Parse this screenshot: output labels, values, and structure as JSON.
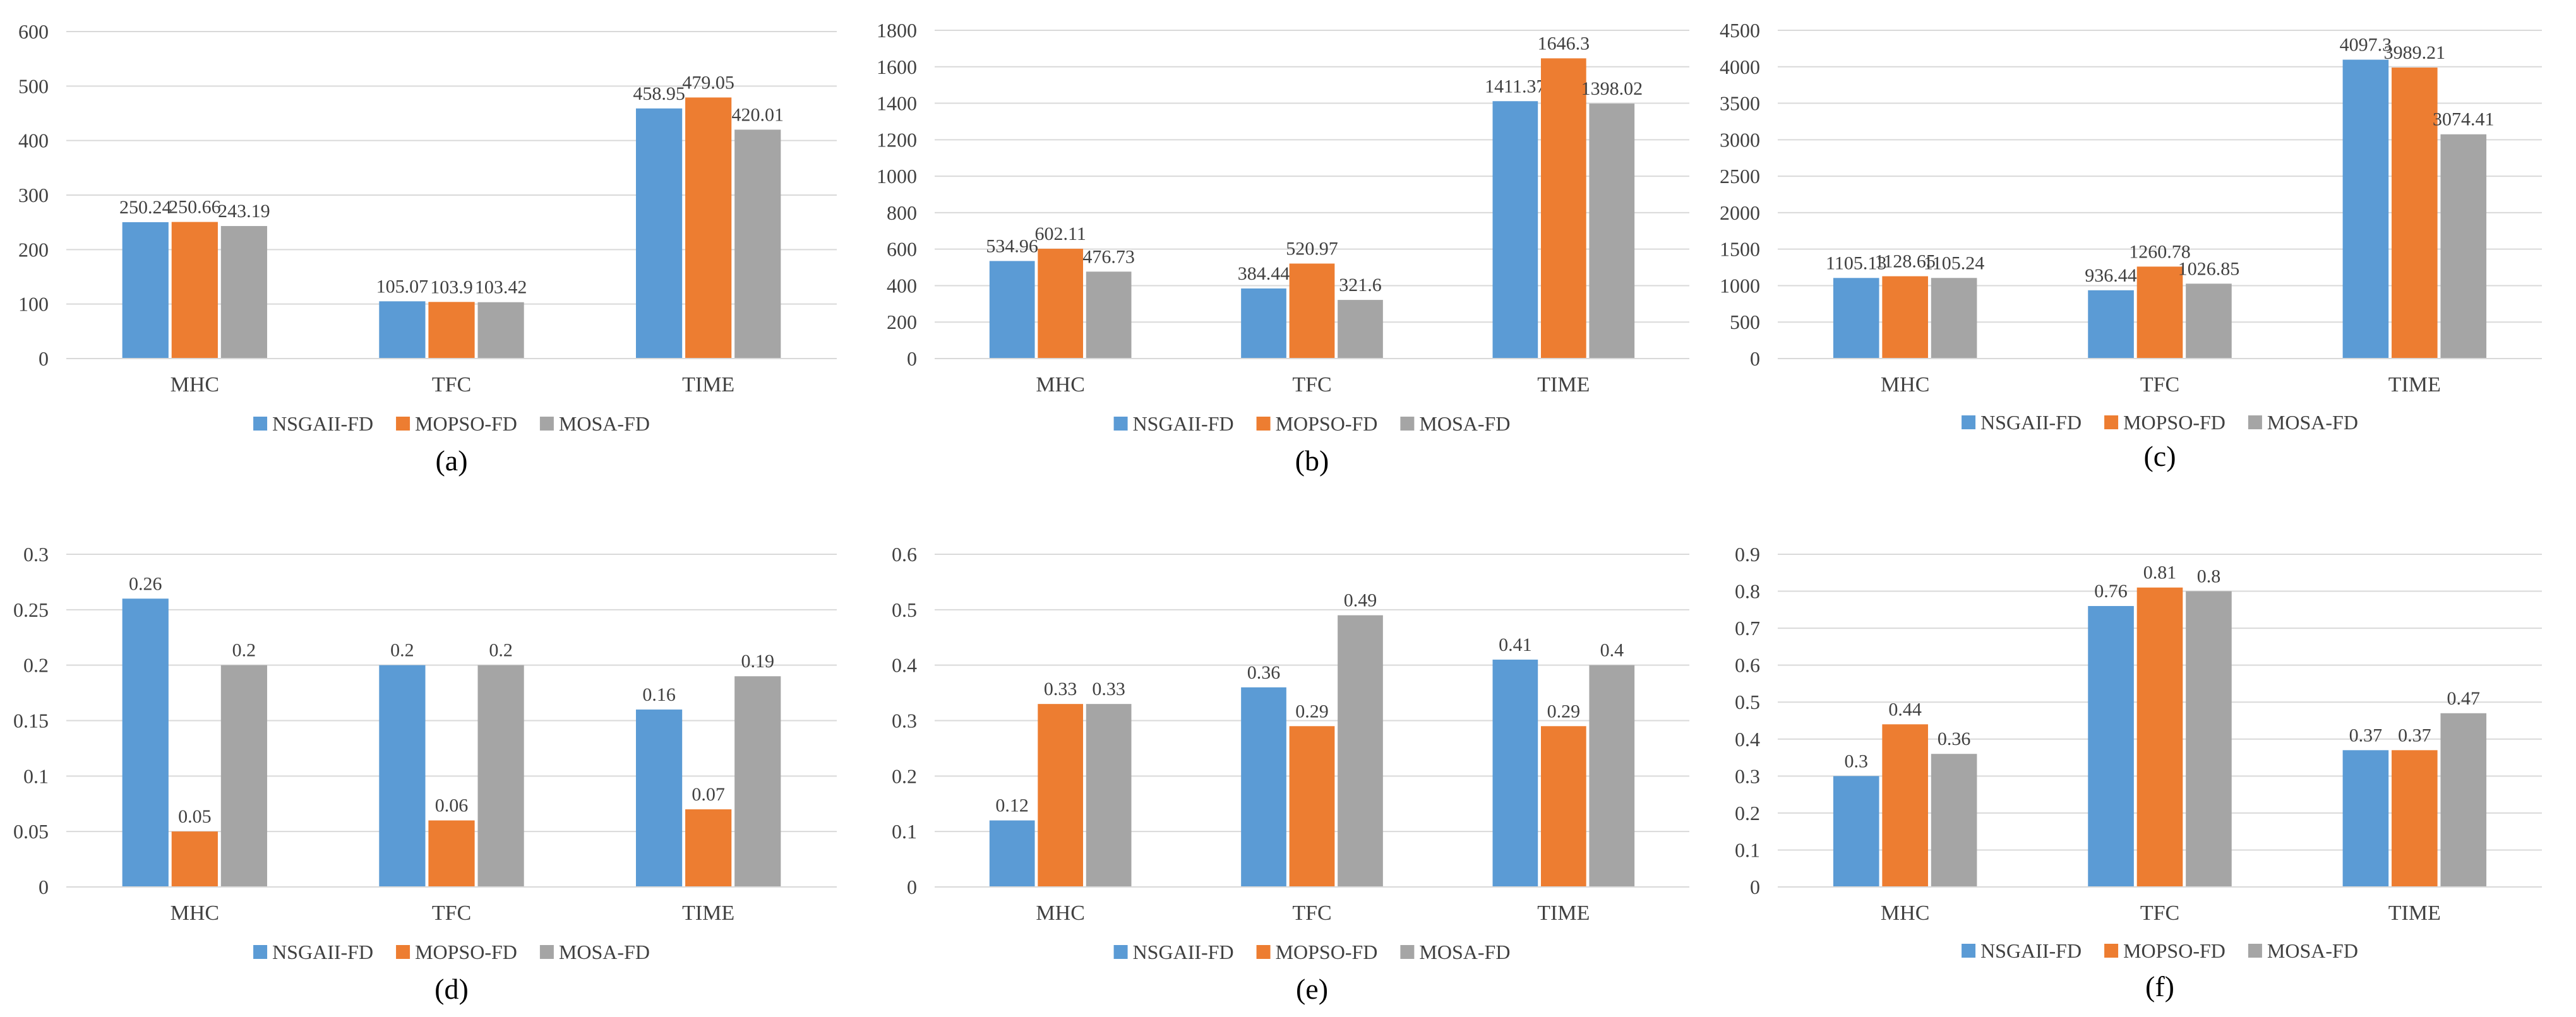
{
  "colors": {
    "NSGAII-FD": "#5b9bd5",
    "MOPSO-FD": "#ed7d31",
    "MOSA-FD": "#a5a5a5",
    "grid": "#d9d9d9",
    "axis_text": "#404040"
  },
  "chart_data": [
    {
      "type": "bar",
      "panel": "(a)",
      "categories": [
        "MHC",
        "TFC",
        "TIME"
      ],
      "series": [
        {
          "name": "NSGAII-FD",
          "values": [
            250.24,
            105.07,
            458.95
          ],
          "labels": [
            "250.24",
            "105.07",
            "458.95"
          ]
        },
        {
          "name": "MOPSO-FD",
          "values": [
            250.66,
            103.9,
            479.05
          ],
          "labels": [
            "250.66",
            "103.9",
            "479.05"
          ]
        },
        {
          "name": "MOSA-FD",
          "values": [
            243.19,
            103.42,
            420.01
          ],
          "labels": [
            "243.19",
            "103.42",
            "420.01"
          ]
        }
      ],
      "ylim": [
        0,
        600
      ],
      "yticks": [
        "0",
        "100",
        "200",
        "300",
        "400",
        "500",
        "600"
      ],
      "legend": "bottom",
      "grid": true
    },
    {
      "type": "bar",
      "panel": "(b)",
      "categories": [
        "MHC",
        "TFC",
        "TIME"
      ],
      "series": [
        {
          "name": "NSGAII-FD",
          "values": [
            534.96,
            384.44,
            1411.37
          ],
          "labels": [
            "534.96",
            "384.44",
            "1411.37"
          ]
        },
        {
          "name": "MOPSO-FD",
          "values": [
            602.11,
            520.97,
            1646.3
          ],
          "labels": [
            "602.11",
            "520.97",
            "1646.3"
          ]
        },
        {
          "name": "MOSA-FD",
          "values": [
            476.73,
            321.6,
            1398.02
          ],
          "labels": [
            "476.73",
            "321.6",
            "1398.02"
          ]
        }
      ],
      "ylim": [
        0,
        1800
      ],
      "yticks": [
        "0",
        "200",
        "400",
        "600",
        "800",
        "1000",
        "1200",
        "1400",
        "1600",
        "1800"
      ],
      "legend": "bottom",
      "grid": true
    },
    {
      "type": "bar",
      "panel": "(c)",
      "categories": [
        "MHC",
        "TFC",
        "TIME"
      ],
      "series": [
        {
          "name": "NSGAII-FD",
          "values": [
            1105.13,
            936.44,
            4097.3
          ],
          "labels": [
            "1105.13",
            "936.44",
            "4097.3"
          ]
        },
        {
          "name": "MOPSO-FD",
          "values": [
            1128.65,
            1260.78,
            3989.21
          ],
          "labels": [
            "1128.65",
            "1260.78",
            "3989.21"
          ]
        },
        {
          "name": "MOSA-FD",
          "values": [
            1105.24,
            1026.85,
            3074.41
          ],
          "labels": [
            "1105.24",
            "1026.85",
            "3074.41"
          ]
        }
      ],
      "ylim": [
        0,
        4500
      ],
      "yticks": [
        "0",
        "500",
        "1000",
        "1500",
        "2000",
        "2500",
        "3000",
        "3500",
        "4000",
        "4500"
      ],
      "legend": "bottom",
      "grid": true
    },
    {
      "type": "bar",
      "panel": "(d)",
      "categories": [
        "MHC",
        "TFC",
        "TIME"
      ],
      "series": [
        {
          "name": "NSGAII-FD",
          "values": [
            0.26,
            0.2,
            0.16
          ],
          "labels": [
            "0.26",
            "0.2",
            "0.16"
          ]
        },
        {
          "name": "MOPSO-FD",
          "values": [
            0.05,
            0.06,
            0.07
          ],
          "labels": [
            "0.05",
            "0.06",
            "0.07"
          ]
        },
        {
          "name": "MOSA-FD",
          "values": [
            0.2,
            0.2,
            0.19
          ],
          "labels": [
            "0.2",
            "0.2",
            "0.19"
          ]
        }
      ],
      "ylim": [
        0,
        0.3
      ],
      "yticks": [
        "0",
        "0.05",
        "0.1",
        "0.15",
        "0.2",
        "0.25",
        "0.3"
      ],
      "legend": "bottom",
      "grid": true
    },
    {
      "type": "bar",
      "panel": "(e)",
      "categories": [
        "MHC",
        "TFC",
        "TIME"
      ],
      "series": [
        {
          "name": "NSGAII-FD",
          "values": [
            0.12,
            0.36,
            0.41
          ],
          "labels": [
            "0.12",
            "0.36",
            "0.41"
          ]
        },
        {
          "name": "MOPSO-FD",
          "values": [
            0.33,
            0.29,
            0.29
          ],
          "labels": [
            "0.33",
            "0.29",
            "0.29"
          ]
        },
        {
          "name": "MOSA-FD",
          "values": [
            0.33,
            0.49,
            0.4
          ],
          "labels": [
            "0.33",
            "0.49",
            "0.4"
          ]
        }
      ],
      "ylim": [
        0,
        0.6
      ],
      "yticks": [
        "0",
        "0.1",
        "0.2",
        "0.3",
        "0.4",
        "0.5",
        "0.6"
      ],
      "legend": "bottom",
      "grid": true
    },
    {
      "type": "bar",
      "panel": "(f)",
      "categories": [
        "MHC",
        "TFC",
        "TIME"
      ],
      "series": [
        {
          "name": "NSGAII-FD",
          "values": [
            0.3,
            0.76,
            0.37
          ],
          "labels": [
            "0.3",
            "0.76",
            "0.37"
          ]
        },
        {
          "name": "MOPSO-FD",
          "values": [
            0.44,
            0.81,
            0.37
          ],
          "labels": [
            "0.44",
            "0.81",
            "0.37"
          ]
        },
        {
          "name": "MOSA-FD",
          "values": [
            0.36,
            0.8,
            0.47
          ],
          "labels": [
            "0.36",
            "0.8",
            "0.47"
          ]
        }
      ],
      "ylim": [
        0,
        0.9
      ],
      "yticks": [
        "0",
        "0.1",
        "0.2",
        "0.3",
        "0.4",
        "0.5",
        "0.6",
        "0.7",
        "0.8",
        "0.9"
      ],
      "legend": "bottom",
      "grid": true
    }
  ]
}
